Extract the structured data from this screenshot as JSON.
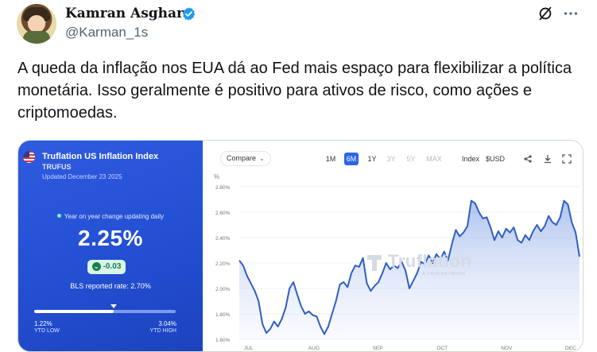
{
  "author": {
    "name": "Kamran Asghar",
    "handle": "@Karman_1s"
  },
  "tweet": {
    "text": "A queda da inflação nos EUA dá ao Fed mais espaço para flexibilizar a política monetária. Isso geralmente é positivo para ativos de risco, como ações e criptomoedas."
  },
  "icons": {
    "verified": "verified-badge-icon",
    "grok": "grok-icon",
    "more": "more-icon"
  },
  "colors": {
    "panel_blue": "#2450d4",
    "verified_blue": "#1d9bf0",
    "line_blue": "#2f5ec4",
    "active_range": "#2c66e4",
    "change_green": "#1a7f4e"
  },
  "card": {
    "left": {
      "title": "Truflation US Inflation Index",
      "ticker": "TRUFUS",
      "updated": "Updated December 23 2025",
      "yoy_note": "Year on year change updating daily",
      "value": "2.25%",
      "change": "-0.03",
      "bls": "BLS reported rate: 2.70%",
      "ytd_low_value": "1.22%",
      "ytd_low_label": "YTD LOW",
      "ytd_high_value": "3.04%",
      "ytd_high_label": "YTD HIGH",
      "ytd_position": 0.56
    },
    "right": {
      "compare": "Compare",
      "ranges": [
        "1M",
        "6M",
        "1Y",
        "3Y",
        "5Y",
        "MAX"
      ],
      "active_range": "6M",
      "index_label": "Index",
      "currency_label": "$USD",
      "watermark": "Truflation",
      "watermark_sub": "A TRUF.NETWORK"
    }
  },
  "chart_data": {
    "type": "area",
    "ylabel": "%",
    "ylim": [
      1.6,
      2.8
    ],
    "yticks": [
      "2.80%",
      "2.60%",
      "2.40%",
      "2.20%",
      "2.00%",
      "1.80%",
      "1.60%"
    ],
    "xticks": [
      "JUL",
      "AUG",
      "SEP",
      "OCT",
      "NOV",
      "DEC"
    ],
    "xlim": [
      0,
      176
    ],
    "grid": true,
    "series": [
      {
        "x": [
          0,
          2,
          4,
          6,
          8,
          10,
          12,
          14,
          16,
          18,
          20,
          22,
          24,
          26,
          28,
          30,
          32,
          34,
          36,
          38,
          40,
          42,
          44,
          46,
          48,
          50,
          52,
          54,
          56,
          58,
          60,
          62,
          64,
          66,
          68,
          70,
          72,
          74,
          76,
          78,
          80,
          82,
          84,
          86,
          88,
          90,
          92,
          94,
          96,
          98,
          100,
          102,
          104,
          106,
          108,
          110,
          112,
          114,
          116,
          118,
          120,
          122,
          124,
          126,
          128,
          130,
          132,
          134,
          136,
          138,
          140,
          142,
          144,
          146,
          148,
          150,
          152,
          154,
          156,
          158,
          160,
          162,
          164,
          166,
          168,
          170,
          172,
          174,
          176
        ],
        "values": [
          2.22,
          2.18,
          2.1,
          2.04,
          1.98,
          1.9,
          1.72,
          1.65,
          1.68,
          1.74,
          1.7,
          1.76,
          1.85,
          2.0,
          2.05,
          1.95,
          1.86,
          1.8,
          1.82,
          1.79,
          1.78,
          1.7,
          1.64,
          1.7,
          1.8,
          1.9,
          2.03,
          2.05,
          2.01,
          2.12,
          2.18,
          2.17,
          2.24,
          2.04,
          1.98,
          2.02,
          2.05,
          2.12,
          2.2,
          2.15,
          2.18,
          2.16,
          2.21,
          2.14,
          2.0,
          2.06,
          2.12,
          2.21,
          2.19,
          2.26,
          2.2,
          2.27,
          2.23,
          2.29,
          2.22,
          2.35,
          2.46,
          2.41,
          2.44,
          2.49,
          2.69,
          2.67,
          2.6,
          2.55,
          2.56,
          2.48,
          2.38,
          2.45,
          2.4,
          2.47,
          2.44,
          2.48,
          2.38,
          2.36,
          2.42,
          2.38,
          2.45,
          2.5,
          2.45,
          2.49,
          2.57,
          2.52,
          2.5,
          2.56,
          2.69,
          2.66,
          2.52,
          2.44,
          2.25
        ]
      }
    ]
  }
}
